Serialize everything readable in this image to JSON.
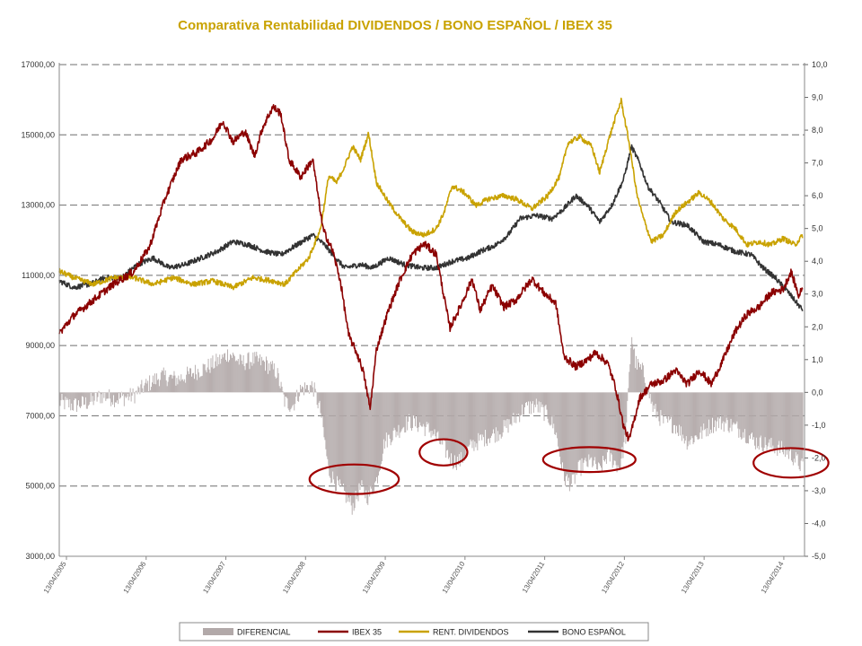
{
  "chart_data": {
    "type": "line",
    "title": "Comparativa Rentabilidad DIVIDENDOS / BONO ESPAÑOL / IBEX 35",
    "y_left": {
      "range": [
        3000,
        17000
      ],
      "ticks": [
        "3000,00",
        "5000,00",
        "7000,00",
        "9000,00",
        "11000,00",
        "13000,00",
        "15000,00",
        "17000,00"
      ]
    },
    "y_right": {
      "range": [
        -5,
        10
      ],
      "ticks": [
        "-5,0",
        "-4,0",
        "-3,0",
        "-2,0",
        "-1,0",
        "0,0",
        "1,0",
        "2,0",
        "3,0",
        "4,0",
        "5,0",
        "6,0",
        "7,0",
        "8,0",
        "9,0",
        "10,0"
      ]
    },
    "x_range": [
      2005.27,
      2014.62
    ],
    "x_ticks": [
      {
        "t": 2005.36,
        "label": "13/04/2005"
      },
      {
        "t": 2006.36,
        "label": "13/04/2006"
      },
      {
        "t": 2007.36,
        "label": "13/04/2007"
      },
      {
        "t": 2008.36,
        "label": "13/04/2008"
      },
      {
        "t": 2009.36,
        "label": "13/04/2009"
      },
      {
        "t": 2010.36,
        "label": "13/04/2010"
      },
      {
        "t": 2011.36,
        "label": "13/04/2011"
      },
      {
        "t": 2012.36,
        "label": "13/04/2012"
      },
      {
        "t": 2013.36,
        "label": "13/04/2013"
      },
      {
        "t": 2014.36,
        "label": "13/04/2014"
      }
    ],
    "legend_position": "bottom",
    "grid": "horizontal dashed",
    "series": [
      {
        "name": "IBEX 35",
        "axis": "left",
        "color": "#8b0000",
        "points": [
          [
            2005.27,
            9350
          ],
          [
            2005.45,
            9850
          ],
          [
            2005.7,
            10300
          ],
          [
            2005.95,
            10750
          ],
          [
            2006.2,
            11100
          ],
          [
            2006.4,
            11800
          ],
          [
            2006.6,
            13200
          ],
          [
            2006.8,
            14300
          ],
          [
            2007.0,
            14500
          ],
          [
            2007.2,
            14900
          ],
          [
            2007.32,
            15400
          ],
          [
            2007.45,
            14800
          ],
          [
            2007.6,
            15100
          ],
          [
            2007.72,
            14400
          ],
          [
            2007.82,
            15200
          ],
          [
            2007.95,
            15800
          ],
          [
            2008.05,
            15600
          ],
          [
            2008.15,
            14300
          ],
          [
            2008.3,
            13800
          ],
          [
            2008.45,
            14300
          ],
          [
            2008.58,
            12300
          ],
          [
            2008.7,
            11700
          ],
          [
            2008.8,
            10800
          ],
          [
            2008.9,
            9300
          ],
          [
            2009.0,
            8800
          ],
          [
            2009.08,
            8300
          ],
          [
            2009.17,
            7200
          ],
          [
            2009.25,
            8900
          ],
          [
            2009.4,
            10000
          ],
          [
            2009.55,
            10900
          ],
          [
            2009.7,
            11600
          ],
          [
            2009.85,
            11900
          ],
          [
            2010.0,
            11600
          ],
          [
            2010.08,
            10600
          ],
          [
            2010.17,
            9500
          ],
          [
            2010.3,
            10100
          ],
          [
            2010.45,
            10900
          ],
          [
            2010.55,
            10000
          ],
          [
            2010.7,
            10700
          ],
          [
            2010.85,
            10100
          ],
          [
            2011.0,
            10300
          ],
          [
            2011.1,
            10600
          ],
          [
            2011.2,
            10900
          ],
          [
            2011.35,
            10500
          ],
          [
            2011.5,
            10200
          ],
          [
            2011.6,
            8700
          ],
          [
            2011.75,
            8400
          ],
          [
            2011.9,
            8600
          ],
          [
            2012.0,
            8800
          ],
          [
            2012.15,
            8500
          ],
          [
            2012.25,
            7800
          ],
          [
            2012.35,
            6700
          ],
          [
            2012.42,
            6300
          ],
          [
            2012.55,
            7500
          ],
          [
            2012.7,
            7900
          ],
          [
            2012.85,
            8000
          ],
          [
            2013.0,
            8300
          ],
          [
            2013.15,
            7900
          ],
          [
            2013.3,
            8300
          ],
          [
            2013.45,
            7900
          ],
          [
            2013.6,
            8600
          ],
          [
            2013.75,
            9400
          ],
          [
            2013.9,
            9900
          ],
          [
            2014.05,
            10100
          ],
          [
            2014.2,
            10500
          ],
          [
            2014.35,
            10600
          ],
          [
            2014.45,
            11100
          ],
          [
            2014.55,
            10400
          ],
          [
            2014.6,
            10700
          ]
        ]
      },
      {
        "name": "RENT. DIVIDENDOS",
        "axis": "right",
        "color": "#c9a200",
        "points": [
          [
            2005.27,
            3.7
          ],
          [
            2005.45,
            3.5
          ],
          [
            2005.7,
            3.3
          ],
          [
            2005.95,
            3.5
          ],
          [
            2006.2,
            3.5
          ],
          [
            2006.45,
            3.3
          ],
          [
            2006.7,
            3.5
          ],
          [
            2006.95,
            3.3
          ],
          [
            2007.2,
            3.4
          ],
          [
            2007.45,
            3.2
          ],
          [
            2007.7,
            3.5
          ],
          [
            2007.95,
            3.4
          ],
          [
            2008.1,
            3.3
          ],
          [
            2008.25,
            3.7
          ],
          [
            2008.4,
            4.1
          ],
          [
            2008.55,
            5.0
          ],
          [
            2008.65,
            6.6
          ],
          [
            2008.75,
            6.4
          ],
          [
            2008.85,
            6.9
          ],
          [
            2008.95,
            7.5
          ],
          [
            2009.05,
            7.1
          ],
          [
            2009.15,
            7.9
          ],
          [
            2009.25,
            6.4
          ],
          [
            2009.4,
            5.8
          ],
          [
            2009.55,
            5.3
          ],
          [
            2009.7,
            4.9
          ],
          [
            2009.85,
            4.8
          ],
          [
            2010.0,
            5.0
          ],
          [
            2010.1,
            5.5
          ],
          [
            2010.2,
            6.3
          ],
          [
            2010.35,
            6.1
          ],
          [
            2010.5,
            5.7
          ],
          [
            2010.65,
            5.9
          ],
          [
            2010.85,
            6.0
          ],
          [
            2011.0,
            5.9
          ],
          [
            2011.2,
            5.6
          ],
          [
            2011.4,
            6.0
          ],
          [
            2011.55,
            6.6
          ],
          [
            2011.65,
            7.6
          ],
          [
            2011.8,
            7.8
          ],
          [
            2011.95,
            7.5
          ],
          [
            2012.05,
            6.7
          ],
          [
            2012.15,
            7.6
          ],
          [
            2012.25,
            8.4
          ],
          [
            2012.32,
            8.9
          ],
          [
            2012.42,
            7.6
          ],
          [
            2012.52,
            6.0
          ],
          [
            2012.6,
            5.3
          ],
          [
            2012.7,
            4.6
          ],
          [
            2012.85,
            4.8
          ],
          [
            2013.0,
            5.5
          ],
          [
            2013.15,
            5.8
          ],
          [
            2013.3,
            6.1
          ],
          [
            2013.45,
            5.8
          ],
          [
            2013.6,
            5.3
          ],
          [
            2013.75,
            5.0
          ],
          [
            2013.9,
            4.5
          ],
          [
            2014.05,
            4.6
          ],
          [
            2014.2,
            4.5
          ],
          [
            2014.35,
            4.7
          ],
          [
            2014.5,
            4.5
          ],
          [
            2014.6,
            4.8
          ]
        ]
      },
      {
        "name": "BONO ESPAÑOL",
        "axis": "right",
        "color": "#333333",
        "points": [
          [
            2005.27,
            3.4
          ],
          [
            2005.45,
            3.2
          ],
          [
            2005.65,
            3.3
          ],
          [
            2005.85,
            3.5
          ],
          [
            2006.05,
            3.5
          ],
          [
            2006.25,
            3.9
          ],
          [
            2006.45,
            4.1
          ],
          [
            2006.65,
            3.8
          ],
          [
            2006.85,
            3.9
          ],
          [
            2007.05,
            4.1
          ],
          [
            2007.25,
            4.3
          ],
          [
            2007.45,
            4.6
          ],
          [
            2007.65,
            4.5
          ],
          [
            2007.85,
            4.3
          ],
          [
            2008.05,
            4.2
          ],
          [
            2008.25,
            4.5
          ],
          [
            2008.45,
            4.8
          ],
          [
            2008.6,
            4.5
          ],
          [
            2008.7,
            4.2
          ],
          [
            2008.85,
            3.8
          ],
          [
            2009.05,
            3.9
          ],
          [
            2009.2,
            3.8
          ],
          [
            2009.4,
            4.1
          ],
          [
            2009.6,
            3.9
          ],
          [
            2009.8,
            3.8
          ],
          [
            2010.0,
            3.8
          ],
          [
            2010.2,
            4.0
          ],
          [
            2010.4,
            4.1
          ],
          [
            2010.55,
            4.3
          ],
          [
            2010.75,
            4.5
          ],
          [
            2010.9,
            4.8
          ],
          [
            2011.05,
            5.3
          ],
          [
            2011.25,
            5.4
          ],
          [
            2011.45,
            5.3
          ],
          [
            2011.6,
            5.6
          ],
          [
            2011.75,
            6.0
          ],
          [
            2011.9,
            5.7
          ],
          [
            2012.05,
            5.2
          ],
          [
            2012.2,
            5.7
          ],
          [
            2012.35,
            6.5
          ],
          [
            2012.45,
            7.5
          ],
          [
            2012.55,
            7.0
          ],
          [
            2012.65,
            6.3
          ],
          [
            2012.8,
            5.8
          ],
          [
            2012.95,
            5.2
          ],
          [
            2013.15,
            5.1
          ],
          [
            2013.35,
            4.6
          ],
          [
            2013.55,
            4.5
          ],
          [
            2013.75,
            4.3
          ],
          [
            2013.95,
            4.2
          ],
          [
            2014.1,
            3.8
          ],
          [
            2014.25,
            3.5
          ],
          [
            2014.4,
            3.1
          ],
          [
            2014.5,
            2.8
          ],
          [
            2014.6,
            2.5
          ]
        ]
      },
      {
        "name": "DIFERENCIAL",
        "axis": "right",
        "color": "#b2a9a9",
        "type": "bar",
        "points": [
          [
            2005.27,
            -0.3
          ],
          [
            2005.45,
            -0.4
          ],
          [
            2005.65,
            -0.3
          ],
          [
            2005.8,
            -0.1
          ],
          [
            2006.0,
            -0.2
          ],
          [
            2006.2,
            -0.1
          ],
          [
            2006.35,
            0.2
          ],
          [
            2006.55,
            0.5
          ],
          [
            2006.75,
            0.4
          ],
          [
            2006.95,
            0.6
          ],
          [
            2007.15,
            0.8
          ],
          [
            2007.3,
            1.0
          ],
          [
            2007.4,
            1.2
          ],
          [
            2007.55,
            0.9
          ],
          [
            2007.7,
            1.0
          ],
          [
            2007.85,
            0.9
          ],
          [
            2008.0,
            0.6
          ],
          [
            2008.1,
            -0.3
          ],
          [
            2008.2,
            -0.4
          ],
          [
            2008.3,
            0.1
          ],
          [
            2008.45,
            0.2
          ],
          [
            2008.55,
            -0.6
          ],
          [
            2008.65,
            -2.4
          ],
          [
            2008.75,
            -2.8
          ],
          [
            2008.85,
            -3.1
          ],
          [
            2008.95,
            -3.5
          ],
          [
            2009.05,
            -2.9
          ],
          [
            2009.15,
            -3.2
          ],
          [
            2009.25,
            -2.7
          ],
          [
            2009.35,
            -1.5
          ],
          [
            2009.5,
            -1.2
          ],
          [
            2009.65,
            -0.9
          ],
          [
            2009.8,
            -1.0
          ],
          [
            2009.95,
            -1.2
          ],
          [
            2010.1,
            -1.7
          ],
          [
            2010.2,
            -2.1
          ],
          [
            2010.3,
            -2.1
          ],
          [
            2010.45,
            -1.6
          ],
          [
            2010.6,
            -1.4
          ],
          [
            2010.8,
            -1.2
          ],
          [
            2010.95,
            -0.9
          ],
          [
            2011.1,
            -0.5
          ],
          [
            2011.25,
            -0.4
          ],
          [
            2011.4,
            -0.7
          ],
          [
            2011.5,
            -1.2
          ],
          [
            2011.6,
            -2.6
          ],
          [
            2011.7,
            -2.8
          ],
          [
            2011.8,
            -2.3
          ],
          [
            2011.95,
            -2.1
          ],
          [
            2012.05,
            -2.4
          ],
          [
            2012.15,
            -1.9
          ],
          [
            2012.3,
            -2.3
          ],
          [
            2012.38,
            -1.3
          ],
          [
            2012.45,
            1.8
          ],
          [
            2012.5,
            0.9
          ],
          [
            2012.6,
            0.6
          ],
          [
            2012.72,
            -0.5
          ],
          [
            2012.85,
            -0.9
          ],
          [
            2013.0,
            -1.0
          ],
          [
            2013.15,
            -1.5
          ],
          [
            2013.3,
            -1.3
          ],
          [
            2013.45,
            -1.0
          ],
          [
            2013.55,
            -0.9
          ],
          [
            2013.7,
            -1.0
          ],
          [
            2013.85,
            -1.2
          ],
          [
            2014.0,
            -1.5
          ],
          [
            2014.15,
            -1.6
          ],
          [
            2014.3,
            -1.7
          ],
          [
            2014.45,
            -1.9
          ],
          [
            2014.6,
            -2.3
          ]
        ]
      }
    ],
    "annotations": [
      {
        "type": "ellipse",
        "color": "#a00000",
        "cx": 2008.97,
        "cy": -2.65,
        "rx_years": 0.56,
        "ry_units": 0.45
      },
      {
        "type": "ellipse",
        "color": "#a00000",
        "cx": 2010.09,
        "cy": -1.83,
        "rx_years": 0.3,
        "ry_units": 0.4
      },
      {
        "type": "ellipse",
        "color": "#a00000",
        "cx": 2011.92,
        "cy": -2.05,
        "rx_years": 0.58,
        "ry_units": 0.38
      },
      {
        "type": "ellipse",
        "color": "#a00000",
        "cx": 2014.45,
        "cy": -2.15,
        "rx_years": 0.47,
        "ry_units": 0.45
      }
    ]
  }
}
